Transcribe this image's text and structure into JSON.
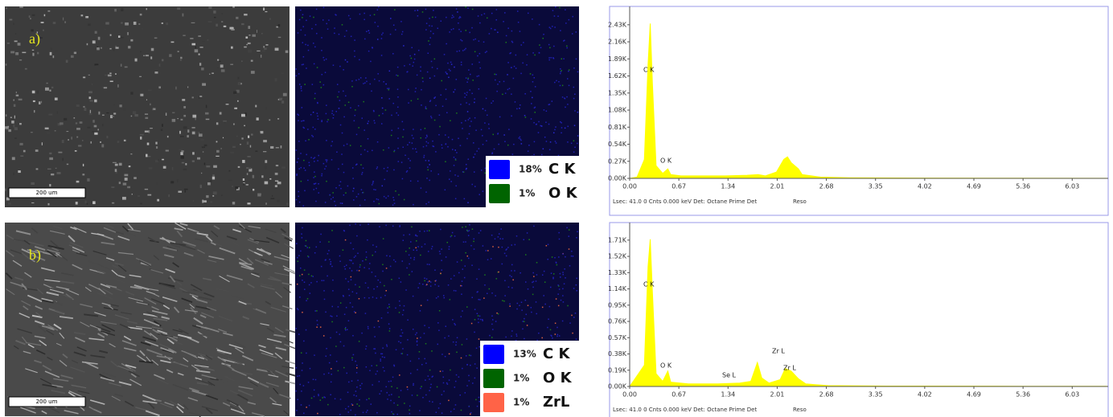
{
  "panels": [
    {
      "label": "a)",
      "scale_bar": "200 um",
      "map_legend": [
        {
          "percent": "18%",
          "element": "C K",
          "color": "#0000ff"
        },
        {
          "percent": "1%",
          "element": "O K",
          "color": "#006400"
        }
      ]
    },
    {
      "label": "b)",
      "scale_bar": "200 um",
      "map_legend": [
        {
          "percent": "13%",
          "element": "C K",
          "color": "#0000ff"
        },
        {
          "percent": "1%",
          "element": "O K",
          "color": "#006400"
        },
        {
          "percent": "1%",
          "element": "ZrL",
          "color": "#ff6347"
        }
      ]
    }
  ],
  "chart_data": [
    {
      "type": "area",
      "x": [
        0,
        0.1,
        0.2,
        0.25,
        0.28,
        0.31,
        0.36,
        0.45,
        0.52,
        0.56,
        0.7,
        1.0,
        1.3,
        1.6,
        1.75,
        1.85,
        2.0,
        2.1,
        2.15,
        2.2,
        2.3,
        2.35,
        2.6,
        3.0,
        4.0,
        5.0,
        6.5
      ],
      "series": [
        {
          "color": "#ffff00",
          "values": [
            0,
            20,
            300,
            1800,
            2450,
            1500,
            200,
            80,
            150,
            60,
            40,
            40,
            40,
            50,
            60,
            40,
            100,
            300,
            340,
            250,
            150,
            60,
            20,
            10,
            5,
            3,
            2
          ]
        }
      ],
      "xlim": [
        0,
        6.52
      ],
      "ylim": [
        0,
        2720
      ],
      "xticks": [
        {
          "value": 0,
          "label": "0.00"
        },
        0.67,
        1.34,
        2.01,
        2.68,
        3.35,
        4.02,
        4.69,
        5.36,
        6.03
      ],
      "yticks": [
        {
          "value": 0,
          "label": "0.00K"
        },
        {
          "value": 270,
          "label": "0.27K"
        },
        {
          "value": 540,
          "label": "0.54K"
        },
        {
          "value": 810,
          "label": "0.81K"
        },
        {
          "value": 1080,
          "label": "1.08K"
        },
        {
          "value": 1350,
          "label": "1.35K"
        },
        {
          "value": 1620,
          "label": "1.62K"
        },
        {
          "value": 1890,
          "label": "1.89K"
        },
        {
          "value": 2160,
          "label": "2.16K"
        },
        {
          "value": 2430,
          "label": "2.43K"
        }
      ],
      "annotations": [
        "C K",
        "O K"
      ],
      "footer": [
        "Lsec: 41.0 0 Cnts  0.000 keV Det: Octane Prime Det",
        "Reso"
      ]
    },
    {
      "type": "area",
      "x": [
        0,
        0.2,
        0.25,
        0.28,
        0.31,
        0.36,
        0.45,
        0.52,
        0.56,
        0.8,
        1.2,
        1.5,
        1.65,
        1.74,
        1.8,
        1.9,
        2.05,
        2.12,
        2.2,
        2.3,
        2.4,
        2.7,
        3.5,
        5.0,
        6.5
      ],
      "series": [
        {
          "color": "#ffff00",
          "values": [
            0,
            250,
            1400,
            1720,
            1100,
            150,
            60,
            180,
            50,
            30,
            30,
            40,
            60,
            280,
            100,
            40,
            80,
            210,
            180,
            90,
            30,
            10,
            5,
            3,
            2
          ]
        }
      ],
      "xlim": [
        0,
        6.52
      ],
      "ylim": [
        0,
        1915
      ],
      "xticks": [
        {
          "value": 0,
          "label": "0.00"
        },
        0.67,
        1.34,
        2.01,
        2.68,
        3.35,
        4.02,
        4.69,
        5.36,
        6.03
      ],
      "yticks": [
        {
          "value": 0,
          "label": "0.00K"
        },
        {
          "value": 190,
          "label": "0.19K"
        },
        {
          "value": 380,
          "label": "0.38K"
        },
        {
          "value": 570,
          "label": "0.57K"
        },
        {
          "value": 760,
          "label": "0.76K"
        },
        {
          "value": 950,
          "label": "0.95K"
        },
        {
          "value": 1140,
          "label": "1.14K"
        },
        {
          "value": 1330,
          "label": "1.33K"
        },
        {
          "value": 1520,
          "label": "1.52K"
        },
        {
          "value": 1710,
          "label": "1.71K"
        }
      ],
      "annotations": [
        "C K",
        "O K",
        "Se L",
        "Zr L",
        "Zr L"
      ],
      "footer": [
        "Lsec: 41.0 0 Cnts  0.000 keV Det: Octane Prime Det",
        "Reso"
      ]
    }
  ]
}
